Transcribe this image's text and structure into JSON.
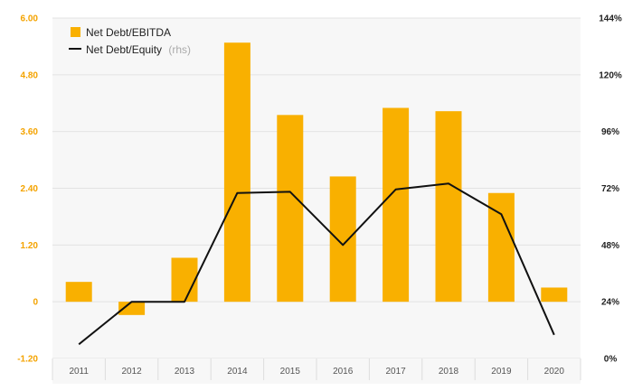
{
  "chart_data": {
    "type": "bar",
    "categories": [
      "2011",
      "2012",
      "2013",
      "2014",
      "2015",
      "2016",
      "2017",
      "2018",
      "2019",
      "2020"
    ],
    "series": [
      {
        "name": "Net Debt/EBITDA",
        "type": "bar",
        "axis": "left",
        "color": "#f9b000",
        "values": [
          0.42,
          -0.28,
          0.93,
          5.48,
          3.95,
          2.65,
          4.1,
          4.03,
          2.3,
          0.3
        ]
      },
      {
        "name": "Net Debt/Equity",
        "name_suffix": "(rhs)",
        "type": "line",
        "axis": "right",
        "color": "#111111",
        "values": [
          6,
          24,
          24,
          70,
          70.5,
          48,
          71.5,
          74,
          61,
          10
        ]
      }
    ],
    "left_axis": {
      "ylim": [
        -1.2,
        6.0
      ],
      "ticks": [
        6.0,
        4.8,
        3.6,
        2.4,
        1.2,
        0,
        -1.2
      ],
      "tick_labels": [
        "6.00",
        "4.80",
        "3.60",
        "2.40",
        "1.20",
        "0",
        "-1.20"
      ],
      "color": "#f4a300"
    },
    "right_axis": {
      "ylim": [
        0,
        144
      ],
      "ticks": [
        144,
        120,
        96,
        72,
        48,
        24,
        0
      ],
      "tick_labels": [
        "144%",
        "120%",
        "96%",
        "72%",
        "48%",
        "24%",
        "0%"
      ]
    },
    "grid": true,
    "legend_position": "top-left",
    "plot_background": "#f7f7f7"
  }
}
